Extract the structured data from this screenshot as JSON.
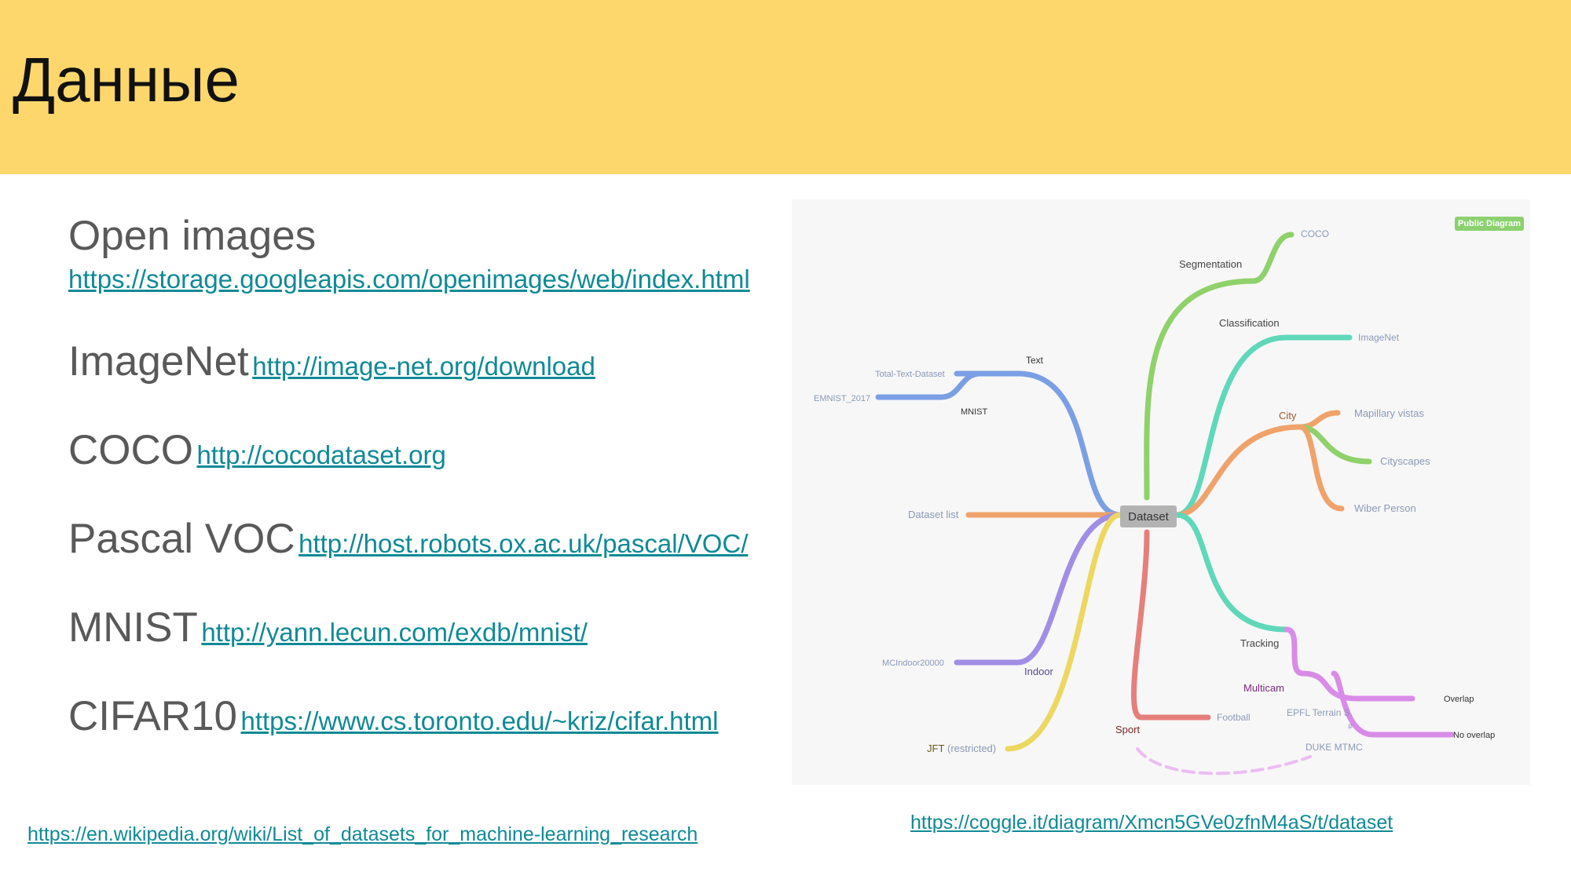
{
  "header": {
    "title": "Данные"
  },
  "datasets": [
    {
      "name": "Open images",
      "url": "https://storage.googleapis.com/openimages/web/index.html"
    },
    {
      "name": "ImageNet",
      "url": "http://image-net.org/download"
    },
    {
      "name": "COCO",
      "url": "http://cocodataset.org"
    },
    {
      "name": "Pascal VOC",
      "url": "http://host.robots.ox.ac.uk/pascal/VOC/"
    },
    {
      "name": "MNIST",
      "url": "http://yann.lecun.com/exdb/mnist/"
    },
    {
      "name": "CIFAR10",
      "url": "https://www.cs.toronto.edu/~kriz/cifar.html"
    }
  ],
  "footer": {
    "wiki_link": "https://en.wikipedia.org/wiki/List_of_datasets_for_machine-learning_research",
    "coggle_link": "https://coggle.it/diagram/Xmcn5GVe0zfnM4aS/t/dataset"
  },
  "diagram": {
    "badge": "Public Diagram",
    "center": "Dataset",
    "labels": {
      "segmentation": "Segmentation",
      "coco": "COCO",
      "classification": "Classification",
      "imagenet": "ImageNet",
      "city": "City",
      "mapillary": "Mapillary vistas",
      "cityscapes": "Cityscapes",
      "wiber": "Wiber Person",
      "text": "Text",
      "total_text": "Total-Text-Dataset",
      "emnist": "EMNIST_2017",
      "mnist": "MNIST",
      "dataset_list": "Dataset list",
      "mcindoor": "MCIndoor20000",
      "indoor": "Indoor",
      "jft": "JFT",
      "jft_note": "(restricted)",
      "sport": "Sport",
      "football": "Football",
      "tracking": "Tracking",
      "multicam": "Multicam",
      "epfl": "EPFL Terrain S.",
      "hash": "#",
      "duke": "DUKE MTMC",
      "overlap": "Overlap",
      "no_overlap": "No overlap"
    },
    "colors": {
      "green": "#8fd16a",
      "teal": "#5fd8b9",
      "orange": "#f0a26b",
      "blue": "#7b9fe4",
      "purple": "#a08ee6",
      "yellow": "#ecd860",
      "red": "#e57f7c",
      "magenta": "#d98be8"
    }
  }
}
